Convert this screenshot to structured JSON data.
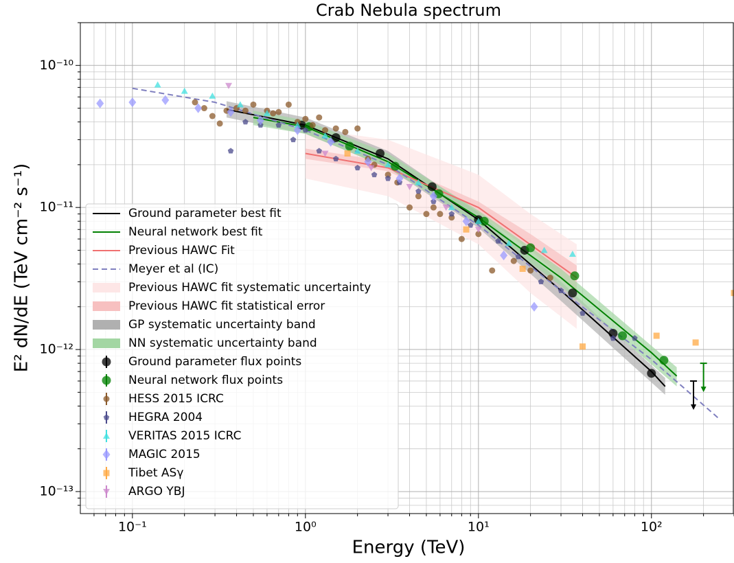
{
  "chart_data": {
    "type": "line",
    "title": "Crab Nebula spectrum",
    "x_label": "Energy (TeV)",
    "y_label": "E² dN/dE (TeV cm⁻² s⁻¹)",
    "xscale": "log",
    "yscale": "log",
    "grid": true,
    "legend": "lower left",
    "xlim": [
      0.05,
      300
    ],
    "ylim": [
      7e-14,
      2e-10
    ],
    "xticks": [
      {
        "value": 0.1,
        "label": "10⁻¹"
      },
      {
        "value": 1,
        "label": "10⁰"
      },
      {
        "value": 10,
        "label": "10¹"
      },
      {
        "value": 100,
        "label": "10²"
      }
    ],
    "yticks": [
      {
        "value": 1e-13,
        "label": "10⁻¹³"
      },
      {
        "value": 1e-12,
        "label": "10⁻¹²"
      },
      {
        "value": 1e-11,
        "label": "10⁻¹¹"
      },
      {
        "value": 1e-10,
        "label": "10⁻¹⁰"
      }
    ],
    "xminor_ticks": [
      0.06,
      0.07,
      0.08,
      0.09,
      0.2,
      0.3,
      0.4,
      0.5,
      0.6,
      0.7,
      0.8,
      0.9,
      2,
      3,
      4,
      5,
      6,
      7,
      8,
      9,
      20,
      30,
      40,
      50,
      60,
      70,
      80,
      90,
      200,
      300
    ],
    "yminor_ticks": [
      8e-14,
      9e-14,
      2e-13,
      3e-13,
      4e-13,
      5e-13,
      6e-13,
      7e-13,
      8e-13,
      9e-13,
      2e-12,
      3e-12,
      4e-12,
      5e-12,
      6e-12,
      7e-12,
      8e-12,
      9e-12,
      2e-11,
      3e-11,
      4e-11,
      5e-11,
      6e-11,
      7e-11,
      8e-11,
      9e-11,
      2e-10
    ],
    "series": [
      {
        "name": "Ground parameter best fit",
        "kind": "line",
        "color": "#000000",
        "x": [
          0.35,
          1,
          3,
          10,
          30,
          100,
          120
        ],
        "values": [
          4.9e-11,
          3.8e-11,
          2.2e-11,
          8.2e-12,
          2.6e-12,
          7e-13,
          5.5e-13
        ]
      },
      {
        "name": "Neural network best fit",
        "kind": "line",
        "color": "#008000",
        "x": [
          0.5,
          1,
          3,
          10,
          30,
          100,
          140
        ],
        "values": [
          4.3e-11,
          3.7e-11,
          2.1e-11,
          8.5e-12,
          3.2e-12,
          9.5e-13,
          6.5e-13
        ]
      },
      {
        "name": "Previous HAWC Fit",
        "kind": "line",
        "color": "#f07070",
        "x": [
          1,
          3,
          10,
          37
        ],
        "values": [
          2.4e-11,
          1.9e-11,
          1e-11,
          3.2e-12
        ]
      },
      {
        "name": "Meyer et al (IC)",
        "kind": "dashed",
        "color": "#7f7fbf",
        "x": [
          0.1,
          0.3,
          1,
          3,
          10,
          30,
          100,
          250
        ],
        "values": [
          6.9e-11,
          5.5e-11,
          3.5e-11,
          2e-11,
          7.5e-12,
          2.6e-12,
          8.5e-13,
          3.2e-13
        ]
      },
      {
        "name": "Previous HAWC fit systematic uncertainty",
        "kind": "band",
        "color": "#fde6e6",
        "x": [
          1,
          3,
          10,
          20,
          37
        ],
        "lower": [
          1.6e-11,
          1.2e-11,
          5.5e-12,
          2.5e-12,
          1.4e-12
        ],
        "upper": [
          3.6e-11,
          3e-11,
          1.7e-11,
          9e-12,
          5.5e-12
        ]
      },
      {
        "name": "Previous HAWC fit statistical error",
        "kind": "band",
        "color": "#f7c0c0",
        "x": [
          1,
          3,
          10,
          20,
          37
        ],
        "lower": [
          2.2e-11,
          1.8e-11,
          9e-12,
          5e-12,
          2.6e-12
        ],
        "upper": [
          2.6e-11,
          2.1e-11,
          1.1e-11,
          6.5e-12,
          3.9e-12
        ]
      },
      {
        "name": "GP systematic uncertainty band",
        "kind": "band",
        "color": "#b0b0b0",
        "x": [
          0.35,
          1,
          3,
          10,
          30,
          120
        ],
        "lower": [
          4.3e-11,
          3.3e-11,
          1.9e-11,
          7.2e-12,
          2.2e-12,
          4.8e-13
        ],
        "upper": [
          5.6e-11,
          4.3e-11,
          2.5e-11,
          9.2e-12,
          3e-12,
          6.3e-13
        ]
      },
      {
        "name": "NN systematic uncertainty band",
        "kind": "band",
        "color": "#a3d6a3",
        "x": [
          0.5,
          1,
          3,
          10,
          30,
          140
        ],
        "lower": [
          3.8e-11,
          3.3e-11,
          1.9e-11,
          7.6e-12,
          2.8e-12,
          5.5e-13
        ],
        "upper": [
          4.8e-11,
          4.1e-11,
          2.4e-11,
          9.5e-12,
          3.7e-12,
          7.5e-13
        ]
      },
      {
        "name": "Ground parameter flux points",
        "kind": "points",
        "marker": "circle",
        "size": 6.5,
        "color": "#000000",
        "x": [
          0.95,
          1.5,
          2.7,
          5.4,
          10,
          18.5,
          35,
          60,
          100
        ],
        "values": [
          3.8e-11,
          3.1e-11,
          2.4e-11,
          1.4e-11,
          8.2e-12,
          5e-12,
          2.5e-12,
          1.3e-12,
          6.8e-13
        ],
        "ul_x": [
          175
        ],
        "ul_values": [
          6e-13
        ]
      },
      {
        "name": "Neural network flux points",
        "kind": "points",
        "marker": "circle",
        "size": 6.5,
        "color": "#008000",
        "x": [
          1.05,
          1.8,
          3.3,
          5.9,
          10.8,
          20,
          36,
          68,
          118
        ],
        "values": [
          3.7e-11,
          2.7e-11,
          1.95e-11,
          1.25e-11,
          8e-12,
          5.2e-12,
          3.3e-12,
          1.25e-12,
          8.4e-13
        ],
        "ul_x": [
          200
        ],
        "ul_values": [
          8e-13
        ]
      },
      {
        "name": "HESS 2015 ICRC",
        "kind": "points",
        "marker": "circle",
        "size": 4.5,
        "color": "#8b5a2b",
        "x": [
          0.23,
          0.26,
          0.29,
          0.32,
          0.35,
          0.4,
          0.45,
          0.5,
          0.6,
          0.65,
          0.7,
          0.8,
          0.9,
          1.0,
          1.1,
          1.2,
          1.3,
          1.5,
          1.7,
          2,
          2.3,
          2.5,
          3,
          3.4,
          4,
          4.5,
          5,
          5.5,
          6,
          7,
          8,
          10,
          12,
          16,
          20,
          26
        ],
        "values": [
          5.5e-11,
          5e-11,
          4.4e-11,
          3.9e-11,
          4.8e-11,
          5e-11,
          4.8e-11,
          5.3e-11,
          4.8e-11,
          4.6e-11,
          4.7e-11,
          5.3e-11,
          4e-11,
          4.2e-11,
          3.8e-11,
          4.3e-11,
          3.5e-11,
          3.6e-11,
          3.4e-11,
          3.6e-11,
          2.2e-11,
          2e-11,
          1.7e-11,
          1.5e-11,
          1e-11,
          1.2e-11,
          9e-12,
          1e-11,
          9e-12,
          8.5e-12,
          6e-12,
          6.5e-12,
          3.6e-12,
          4.2e-12,
          3.6e-12,
          3.2e-12
        ]
      },
      {
        "name": "HEGRA 2004",
        "kind": "points",
        "marker": "pentagon",
        "size": 4.5,
        "color": "#4b4b8c",
        "x": [
          0.37,
          0.45,
          0.55,
          0.7,
          0.85,
          1,
          1.2,
          1.5,
          2,
          2.5,
          3,
          3.5,
          4.5,
          5.5,
          7,
          9,
          13,
          17,
          23,
          30,
          40,
          60,
          80
        ],
        "values": [
          2.5e-11,
          4e-11,
          3.8e-11,
          3.8e-11,
          3e-11,
          3.5e-11,
          2.5e-11,
          2.2e-11,
          1.9e-11,
          1.7e-11,
          1.6e-11,
          1.5e-11,
          1.3e-11,
          1.1e-11,
          9e-12,
          7.5e-12,
          5.8e-12,
          4.5e-12,
          3e-12,
          2.6e-12,
          1.8e-12,
          1.2e-12,
          1.2e-12
        ]
      },
      {
        "name": "VERITAS 2015 ICRC",
        "kind": "points",
        "marker": "triangle",
        "size": 5,
        "color": "#40e0e0",
        "x": [
          0.14,
          0.2,
          0.29,
          0.42,
          0.6,
          0.9,
          1.3,
          2,
          3,
          4.5,
          7,
          10,
          15,
          24,
          35
        ],
        "values": [
          7.3e-11,
          6.6e-11,
          6.1e-11,
          5.3e-11,
          4.6e-11,
          3.8e-11,
          3.2e-11,
          2.5e-11,
          2e-11,
          1.5e-11,
          1e-11,
          8e-12,
          5.6e-12,
          5e-12,
          4.7e-12
        ]
      },
      {
        "name": "MAGIC 2015",
        "kind": "points",
        "marker": "diamond",
        "size": 5.5,
        "color": "#9999ff",
        "x": [
          0.065,
          0.1,
          0.155,
          0.24,
          0.37,
          0.55,
          0.9,
          1.4,
          2.3,
          3.5,
          5.5,
          8.5,
          14,
          21
        ],
        "values": [
          5.4e-11,
          5.5e-11,
          5.7e-11,
          5e-11,
          4.7e-11,
          4.1e-11,
          3.5e-11,
          2.9e-11,
          2.1e-11,
          1.6e-11,
          1.2e-11,
          8e-12,
          4.6e-12,
          2e-12
        ]
      },
      {
        "name": "Tibet ASγ",
        "kind": "points",
        "marker": "square",
        "size": 4.5,
        "color": "#ffaa44",
        "x": [
          1.75,
          8.5,
          18,
          40,
          107,
          180,
          300
        ],
        "values": [
          2.4e-11,
          7e-12,
          3.7e-12,
          1.05e-12,
          1.25e-12,
          1.12e-12,
          2.5e-12
        ]
      },
      {
        "name": "ARGO YBJ",
        "kind": "points",
        "marker": "down",
        "size": 5,
        "color": "#cc88cc",
        "x": [
          0.36,
          1.3,
          2.4,
          4,
          6.5,
          10
        ],
        "values": [
          7.2e-11,
          2.4e-11,
          1.9e-11,
          1.4e-11,
          1e-11,
          7e-12
        ]
      }
    ]
  }
}
